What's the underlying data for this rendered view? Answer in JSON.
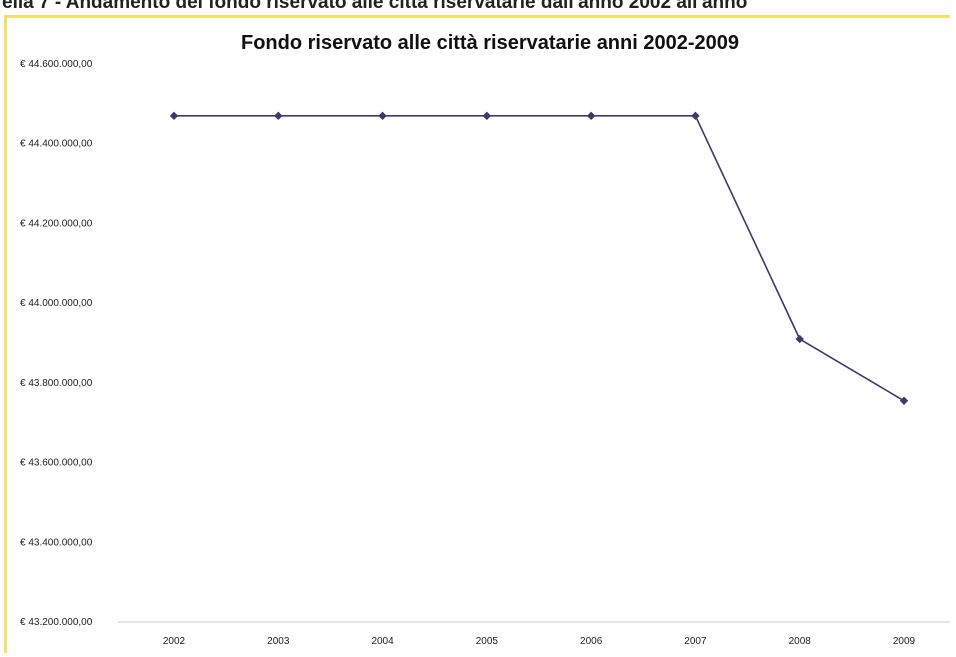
{
  "header": {
    "caption": "ella 7 - Andamento del fondo riservato alle città riservatarie dall'anno 2002 all'anno"
  },
  "chart_data": {
    "type": "line",
    "title": "Fondo riservato alle città riservatarie anni 2002-2009",
    "xlabel": "",
    "ylabel": "",
    "categories": [
      "2002",
      "2003",
      "2004",
      "2005",
      "2006",
      "2007",
      "2008",
      "2009"
    ],
    "series": [
      {
        "values": [
          44470000,
          44470000,
          44470000,
          44470000,
          44470000,
          44470000,
          43910000,
          43755000
        ]
      }
    ],
    "ylim": [
      43200000,
      44600000
    ],
    "yticks": [
      43200000,
      43400000,
      43600000,
      43800000,
      44000000,
      44200000,
      44400000,
      44600000
    ],
    "ytick_labels": [
      "€ 43.200.000,00",
      "€ 43.400.000,00",
      "€ 43.600.000,00",
      "€ 43.800.000,00",
      "€ 44.000.000,00",
      "€ 44.200.000,00",
      "€ 44.400.000,00",
      "€ 44.600.000,00"
    ],
    "grid": false,
    "legend": "none",
    "line_color": "#3a3a6e",
    "marker": "diamond"
  }
}
